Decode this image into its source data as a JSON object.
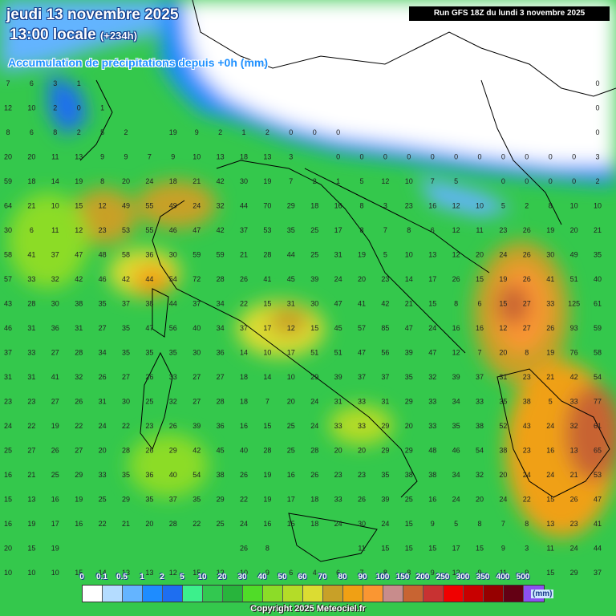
{
  "header": {
    "date_line": "jeudi 13 novembre 2025",
    "time_line": "13:00 locale",
    "lead_time": "(+234h)",
    "product": "Accumulation de précipitations depuis +0h (mm)",
    "run_info": "Run GFS 18Z du lundi 3 novembre 2025"
  },
  "legend": {
    "labels": [
      "0",
      "0.1",
      "0.5",
      "1",
      "2",
      "5",
      "10",
      "20",
      "30",
      "40",
      "50",
      "60",
      "70",
      "80",
      "90",
      "100",
      "150",
      "200",
      "250",
      "300",
      "350",
      "400",
      "500"
    ],
    "colors": [
      "#ffffff",
      "#b4dcff",
      "#64b4ff",
      "#1e8cff",
      "#1e6ef0",
      "#3cf08c",
      "#32c850",
      "#28b43c",
      "#50dc28",
      "#8cdc28",
      "#b4dc28",
      "#dcdc32",
      "#c8a028",
      "#f0a014",
      "#fa9632",
      "#c88c8c",
      "#c86432",
      "#c83232",
      "#f00000",
      "#c80000",
      "#960000",
      "#640014",
      "#8c50f0"
    ],
    "unit": "(mm)"
  },
  "footer": {
    "copyright": "Copyright 2025 Meteociel.fr"
  },
  "grid_rows": [
    [
      "7",
      "6",
      "3",
      "1",
      "",
      "",
      "",
      "",
      "",
      "",
      "",
      "",
      "",
      "",
      "",
      "",
      "",
      "",
      "",
      "",
      "",
      "",
      "",
      "",
      "",
      "0"
    ],
    [
      "12",
      "10",
      "2",
      "0",
      "1",
      "",
      "",
      "",
      "",
      "",
      "",
      "",
      "",
      "",
      "",
      "",
      "",
      "",
      "",
      "",
      "",
      "",
      "",
      "",
      "",
      "0"
    ],
    [
      "8",
      "6",
      "8",
      "2",
      "5",
      "2",
      "",
      "19",
      "9",
      "2",
      "1",
      "2",
      "0",
      "0",
      "0",
      "",
      "",
      "",
      "",
      "",
      "",
      "",
      "",
      "",
      "",
      "0"
    ],
    [
      "20",
      "20",
      "11",
      "13",
      "9",
      "9",
      "7",
      "9",
      "10",
      "13",
      "18",
      "13",
      "3",
      "",
      "0",
      "0",
      "0",
      "0",
      "0",
      "0",
      "0",
      "0",
      "0",
      "0",
      "0",
      "3"
    ],
    [
      "59",
      "18",
      "14",
      "19",
      "8",
      "20",
      "24",
      "18",
      "21",
      "42",
      "30",
      "19",
      "7",
      "2",
      "1",
      "5",
      "12",
      "10",
      "7",
      "5",
      "",
      "0",
      "0",
      "0",
      "0",
      "2"
    ],
    [
      "64",
      "21",
      "10",
      "15",
      "12",
      "49",
      "55",
      "49",
      "24",
      "32",
      "44",
      "70",
      "29",
      "18",
      "16",
      "8",
      "3",
      "23",
      "16",
      "12",
      "10",
      "5",
      "2",
      "8",
      "10",
      "10"
    ],
    [
      "30",
      "6",
      "11",
      "12",
      "23",
      "53",
      "55",
      "46",
      "47",
      "42",
      "37",
      "53",
      "35",
      "25",
      "17",
      "8",
      "7",
      "8",
      "6",
      "12",
      "11",
      "23",
      "26",
      "19",
      "20",
      "21"
    ],
    [
      "58",
      "41",
      "37",
      "47",
      "48",
      "58",
      "36",
      "30",
      "59",
      "59",
      "21",
      "28",
      "44",
      "25",
      "31",
      "19",
      "5",
      "10",
      "13",
      "12",
      "20",
      "24",
      "26",
      "30",
      "49",
      "35"
    ],
    [
      "57",
      "33",
      "32",
      "42",
      "46",
      "42",
      "44",
      "54",
      "72",
      "28",
      "26",
      "41",
      "45",
      "39",
      "24",
      "20",
      "23",
      "14",
      "17",
      "26",
      "15",
      "19",
      "26",
      "41",
      "51",
      "40"
    ],
    [
      "43",
      "28",
      "30",
      "38",
      "35",
      "37",
      "38",
      "44",
      "37",
      "34",
      "22",
      "15",
      "31",
      "30",
      "47",
      "41",
      "42",
      "21",
      "15",
      "8",
      "6",
      "15",
      "27",
      "33",
      "125",
      "61"
    ],
    [
      "46",
      "31",
      "36",
      "31",
      "27",
      "35",
      "47",
      "56",
      "40",
      "34",
      "37",
      "17",
      "12",
      "15",
      "45",
      "57",
      "85",
      "47",
      "24",
      "16",
      "16",
      "12",
      "27",
      "26",
      "93",
      "59"
    ],
    [
      "37",
      "33",
      "27",
      "28",
      "34",
      "35",
      "35",
      "35",
      "30",
      "36",
      "14",
      "10",
      "17",
      "51",
      "51",
      "47",
      "56",
      "39",
      "47",
      "12",
      "7",
      "20",
      "8",
      "19",
      "76",
      "58"
    ],
    [
      "31",
      "31",
      "41",
      "32",
      "26",
      "27",
      "26",
      "33",
      "27",
      "27",
      "18",
      "14",
      "10",
      "29",
      "39",
      "37",
      "37",
      "35",
      "32",
      "39",
      "37",
      "31",
      "23",
      "21",
      "42",
      "54"
    ],
    [
      "23",
      "23",
      "27",
      "26",
      "31",
      "30",
      "25",
      "32",
      "27",
      "28",
      "18",
      "7",
      "20",
      "24",
      "31",
      "33",
      "31",
      "29",
      "33",
      "34",
      "33",
      "35",
      "38",
      "5",
      "33",
      "77"
    ],
    [
      "24",
      "22",
      "19",
      "22",
      "24",
      "22",
      "23",
      "26",
      "39",
      "36",
      "16",
      "15",
      "25",
      "24",
      "33",
      "33",
      "29",
      "20",
      "33",
      "35",
      "38",
      "52",
      "43",
      "24",
      "32",
      "61"
    ],
    [
      "25",
      "27",
      "26",
      "27",
      "20",
      "28",
      "26",
      "29",
      "42",
      "45",
      "40",
      "28",
      "25",
      "28",
      "20",
      "20",
      "29",
      "29",
      "48",
      "46",
      "54",
      "38",
      "23",
      "16",
      "13",
      "65"
    ],
    [
      "16",
      "21",
      "25",
      "29",
      "33",
      "35",
      "36",
      "40",
      "54",
      "38",
      "26",
      "19",
      "16",
      "26",
      "23",
      "23",
      "35",
      "38",
      "38",
      "34",
      "32",
      "20",
      "24",
      "24",
      "21",
      "53"
    ],
    [
      "15",
      "13",
      "16",
      "19",
      "25",
      "29",
      "35",
      "37",
      "35",
      "29",
      "22",
      "19",
      "17",
      "18",
      "33",
      "26",
      "39",
      "25",
      "16",
      "24",
      "20",
      "24",
      "22",
      "15",
      "26",
      "47"
    ],
    [
      "16",
      "19",
      "17",
      "16",
      "22",
      "21",
      "20",
      "28",
      "22",
      "25",
      "24",
      "16",
      "15",
      "18",
      "24",
      "30",
      "24",
      "15",
      "9",
      "5",
      "8",
      "7",
      "8",
      "13",
      "23",
      "41"
    ],
    [
      "20",
      "15",
      "19",
      "",
      "",
      "",
      "",
      "",
      "",
      "",
      "26",
      "8",
      "",
      "",
      "",
      "11",
      "15",
      "15",
      "15",
      "17",
      "15",
      "9",
      "3",
      "11",
      "24",
      "44"
    ],
    [
      "10",
      "10",
      "10",
      "15",
      "14",
      "13",
      "13",
      "12",
      "15",
      "12",
      "10",
      "9",
      "6",
      "4",
      "6",
      "7",
      "8",
      "8",
      "9",
      "12",
      "9",
      "11",
      "9",
      "15",
      "29",
      "37"
    ]
  ]
}
